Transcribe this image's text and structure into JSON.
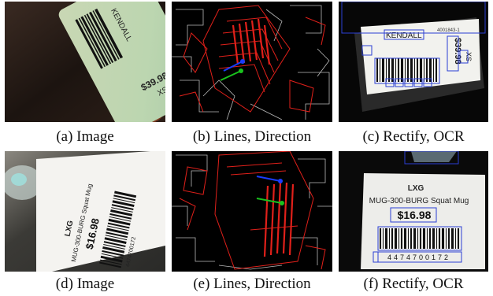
{
  "captions": [
    "(a) Image",
    "(b) Lines, Direction",
    "(c) Rectify, OCR",
    "(d) Image",
    "(e) Lines, Direction",
    "(f) Rectify, OCR"
  ],
  "label_top": {
    "brand": "KENDALL",
    "price": "$39.98",
    "size": "XS",
    "code": "4001843-1"
  },
  "label_bottom": {
    "brand": "LXG",
    "product": "MUG-300-BURG Squat Mug",
    "price": "$16.98",
    "barcode_digits": "4474700172"
  },
  "colors": {
    "edge_red": "#e0201a",
    "edge_white": "#e8e8e8",
    "direction_blue": "#1a3cff",
    "direction_green": "#19c21d",
    "ocr_box": "#2b3fd4"
  }
}
